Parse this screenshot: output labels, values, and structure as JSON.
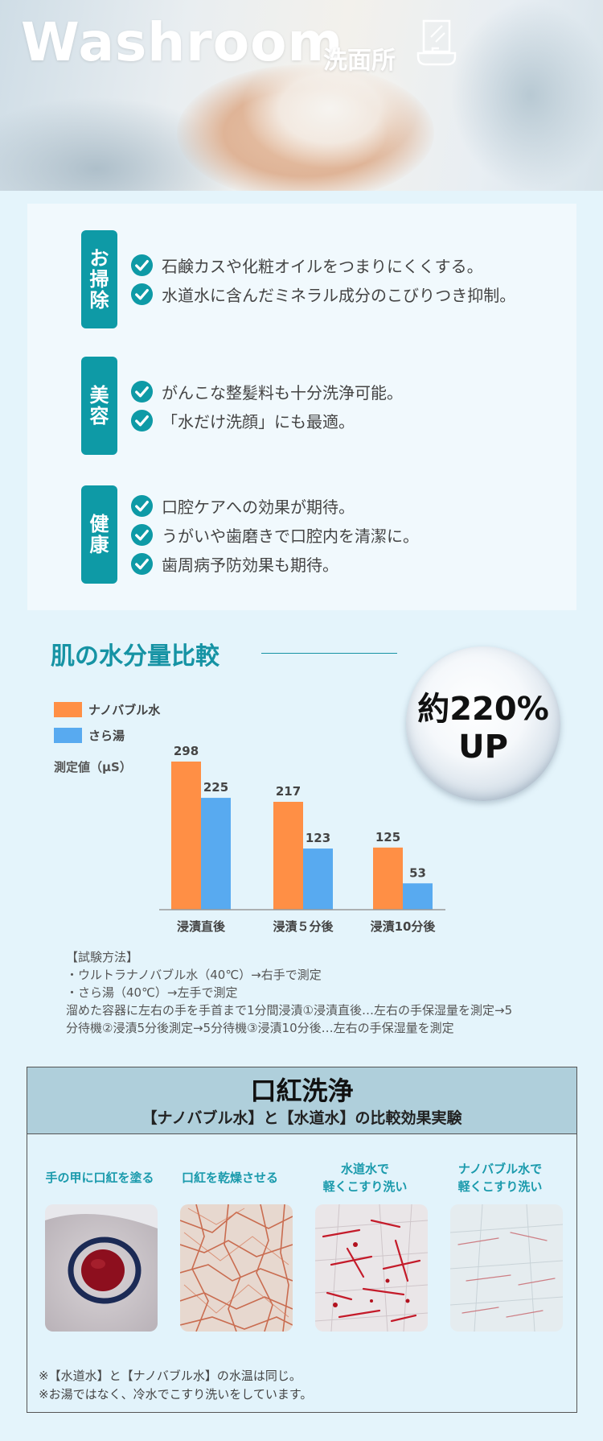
{
  "hero": {
    "title": "Washroom",
    "subtitle": "洗面所",
    "icon": "washbasin-mirror-icon"
  },
  "benefits": [
    {
      "category": "お掃除",
      "items": [
        "石鹸カスや化粧オイルをつまりにくくする。",
        "水道水に含んだミネラル成分のこびりつき抑制。"
      ]
    },
    {
      "category": "美容",
      "items": [
        "がんこな整髪料も十分洗浄可能。",
        "「水だけ洗顔」にも最適。"
      ]
    },
    {
      "category": "健康",
      "items": [
        "口腔ケアへの効果が期待。",
        "うがいや歯磨きで口腔内を清潔に。",
        "歯周病予防効果も期待。"
      ]
    }
  ],
  "chart_section": {
    "title": "肌の水分量比較",
    "badge_line1": "約220%",
    "badge_line2": "UP",
    "unit": "測定値（μS）",
    "method": {
      "heading": "【試験方法】",
      "lines": [
        "・ウルトラナノバブル水（40℃）→右手で測定",
        "・さら湯（40℃）→左手で測定",
        "溜めた容器に左右の手を手首まで1分間浸漬①浸漬直後…左右の手保湿量を測定→5",
        "分待機②浸漬5分後測定→5分待機③浸漬10分後…左右の手保湿量を測定"
      ]
    }
  },
  "chart_data": {
    "type": "bar",
    "title": "肌の水分量比較",
    "ylabel": "測定値（μS）",
    "xlabel": "",
    "categories": [
      "浸漬直後",
      "浸漬５分後",
      "浸漬10分後"
    ],
    "series": [
      {
        "name": "ナノバブル水",
        "values": [
          298,
          217,
          125
        ],
        "color": "#ff8f45"
      },
      {
        "name": "さら湯",
        "values": [
          225,
          123,
          53
        ],
        "color": "#58aaf0"
      }
    ],
    "ylim": [
      0,
      298
    ],
    "legend_position": "top-left",
    "grid": false
  },
  "lipstick": {
    "title": "口紅洗浄",
    "subtitle": "【ナノバブル水】と【水道水】の比較効果実験",
    "steps": [
      {
        "label_line1": "手の甲に口紅を塗る",
        "label_line2": ""
      },
      {
        "label_line1": "口紅を乾燥させる",
        "label_line2": ""
      },
      {
        "label_line1": "水道水で",
        "label_line2": "軽くこすり洗い"
      },
      {
        "label_line1": "ナノバブル水で",
        "label_line2": "軽くこすり洗い"
      }
    ],
    "notes": [
      "※【水道水】と【ナノバブル水】の水温は同じ。",
      "※お湯ではなく、冷水でこすり洗いをしています。"
    ]
  },
  "colors": {
    "accent": "#0e9aa6",
    "title": "#1693a4",
    "nano": "#ff8f45",
    "plain": "#58aaf0",
    "step_label": "#1a9aac"
  }
}
